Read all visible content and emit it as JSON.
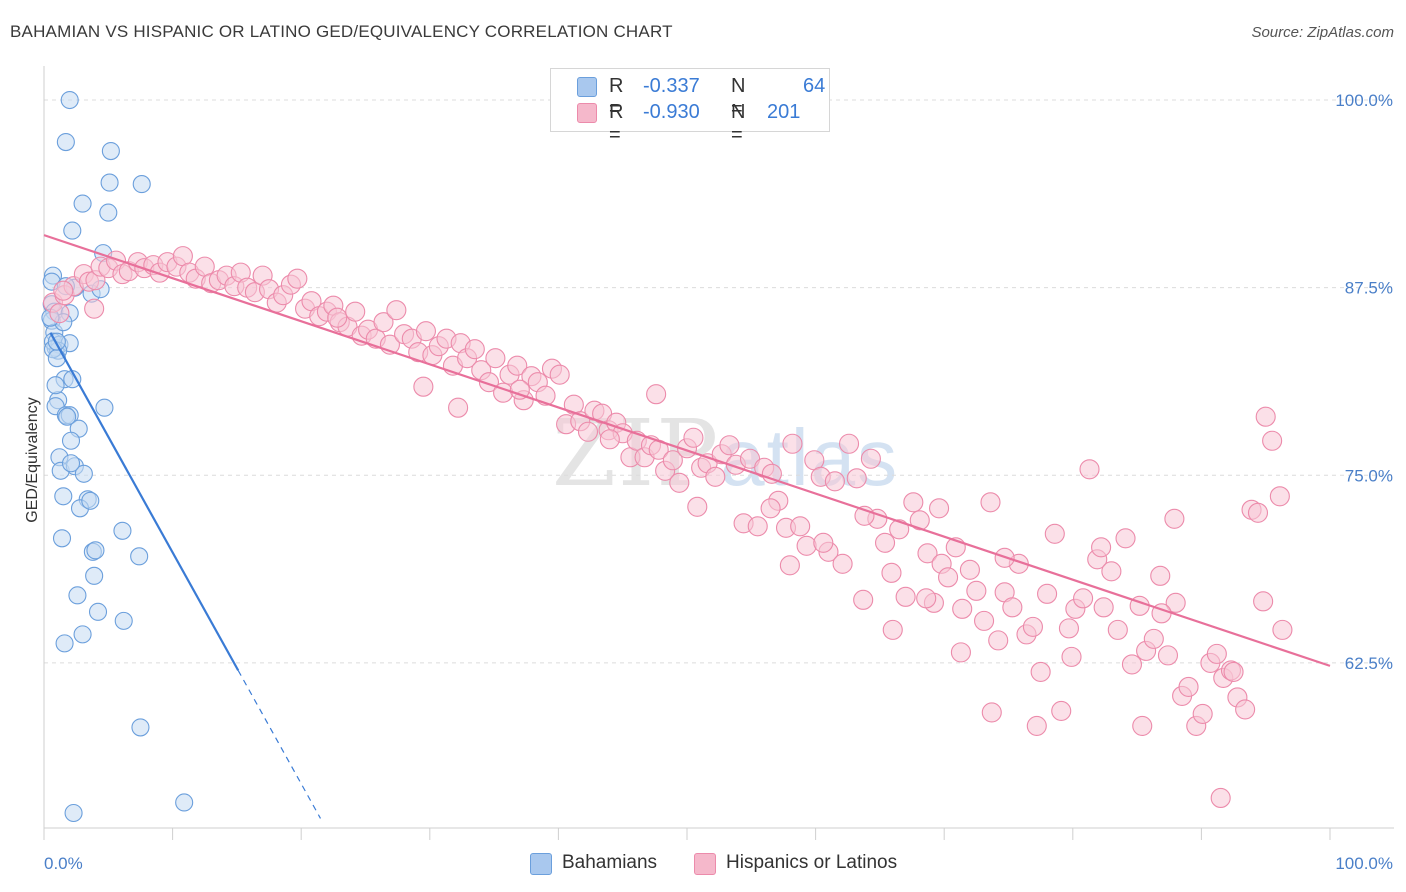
{
  "title": "BAHAMIAN VS HISPANIC OR LATINO GED/EQUIVALENCY CORRELATION CHART",
  "source": "Source: ZipAtlas.com",
  "watermark": {
    "zip": "ZIP",
    "atlas": "atlas"
  },
  "legend_top": {
    "rows": [
      {
        "r_label": "R =",
        "r_value": "-0.337",
        "n_label": "N =",
        "n_value": "64",
        "color": "#a9c8ee"
      },
      {
        "r_label": "R =",
        "r_value": "-0.930",
        "n_label": "N =",
        "n_value": "201",
        "color": "#f5b8cb"
      }
    ]
  },
  "legend_bottom": [
    {
      "label": "Bahamians",
      "color": "#a9c8ee"
    },
    {
      "label": "Hispanics or Latinos",
      "color": "#f5b8cb"
    }
  ],
  "chart_data": {
    "type": "scatter",
    "ylabel": "GED/Equivalency",
    "xlabel": "",
    "xlim": [
      0,
      100
    ],
    "ylim": [
      51.5,
      102
    ],
    "x_tick_labels": [
      "0.0%",
      "100.0%"
    ],
    "y_ticks": [
      62.5,
      75.0,
      87.5,
      100.0
    ],
    "y_tick_labels": [
      "62.5%",
      "75.0%",
      "87.5%",
      "100.0%"
    ],
    "grid": true,
    "series": [
      {
        "name": "Bahamians",
        "color": "#6b9fdc",
        "fill": "#c5daf3",
        "trend": {
          "x_start": 0.5,
          "y_start": 84.5,
          "x_solid_end": 15.1,
          "x_end": 21.5,
          "color": "#3a7bd5"
        },
        "points": [
          [
            2.0,
            100.0
          ],
          [
            1.7,
            97.2
          ],
          [
            5.2,
            96.6
          ],
          [
            5.1,
            94.5
          ],
          [
            7.6,
            94.4
          ],
          [
            3.0,
            93.1
          ],
          [
            5.0,
            92.5
          ],
          [
            2.2,
            91.3
          ],
          [
            4.6,
            89.8
          ],
          [
            0.7,
            88.3
          ],
          [
            0.6,
            87.9
          ],
          [
            2.4,
            87.5
          ],
          [
            3.7,
            87.1
          ],
          [
            4.4,
            87.4
          ],
          [
            1.7,
            87.6
          ],
          [
            0.6,
            86.4
          ],
          [
            0.8,
            85.9
          ],
          [
            0.6,
            85.3
          ],
          [
            2.0,
            85.8
          ],
          [
            0.8,
            84.5
          ],
          [
            1.5,
            85.2
          ],
          [
            0.9,
            83.5
          ],
          [
            0.7,
            83.9
          ],
          [
            1.2,
            83.7
          ],
          [
            2.0,
            83.8
          ],
          [
            1.1,
            83.3
          ],
          [
            0.7,
            83.4
          ],
          [
            1.0,
            82.8
          ],
          [
            1.6,
            81.4
          ],
          [
            2.2,
            81.4
          ],
          [
            1.1,
            80.0
          ],
          [
            0.9,
            79.6
          ],
          [
            4.7,
            79.5
          ],
          [
            1.7,
            79.0
          ],
          [
            2.0,
            79.0
          ],
          [
            2.7,
            78.1
          ],
          [
            2.1,
            77.3
          ],
          [
            1.2,
            76.2
          ],
          [
            1.3,
            75.3
          ],
          [
            2.4,
            75.6
          ],
          [
            3.1,
            75.1
          ],
          [
            1.5,
            73.6
          ],
          [
            3.4,
            73.4
          ],
          [
            2.8,
            72.8
          ],
          [
            6.1,
            71.3
          ],
          [
            1.4,
            70.8
          ],
          [
            3.8,
            69.9
          ],
          [
            7.4,
            69.6
          ],
          [
            3.9,
            68.3
          ],
          [
            2.6,
            67.0
          ],
          [
            4.2,
            65.9
          ],
          [
            6.2,
            65.3
          ],
          [
            3.0,
            64.4
          ],
          [
            1.6,
            63.8
          ],
          [
            7.5,
            58.2
          ],
          [
            2.3,
            52.5
          ],
          [
            10.9,
            53.2
          ],
          [
            0.5,
            85.5
          ],
          [
            1.0,
            83.9
          ],
          [
            3.6,
            73.3
          ],
          [
            4.0,
            70.0
          ],
          [
            2.1,
            75.8
          ],
          [
            1.8,
            78.9
          ],
          [
            0.9,
            81.0
          ]
        ]
      },
      {
        "name": "Hispanics or Latinos",
        "color": "#ec8bab",
        "fill": "#f8c6d6",
        "trend": {
          "x_start": 0.0,
          "y_start": 91.0,
          "x_end": 100.0,
          "y_end": 62.3,
          "color": "#e8709a"
        },
        "points": [
          [
            0.7,
            86.5
          ],
          [
            1.2,
            85.8
          ],
          [
            1.6,
            87.0
          ],
          [
            2.3,
            87.6
          ],
          [
            3.1,
            88.4
          ],
          [
            3.5,
            87.9
          ],
          [
            4.0,
            88.0
          ],
          [
            4.4,
            88.9
          ],
          [
            5.0,
            88.8
          ],
          [
            5.6,
            89.3
          ],
          [
            6.1,
            88.4
          ],
          [
            6.6,
            88.6
          ],
          [
            7.3,
            89.2
          ],
          [
            7.8,
            88.8
          ],
          [
            8.5,
            89.0
          ],
          [
            9.0,
            88.5
          ],
          [
            9.6,
            89.2
          ],
          [
            10.3,
            88.9
          ],
          [
            10.8,
            89.6
          ],
          [
            11.3,
            88.5
          ],
          [
            11.8,
            88.1
          ],
          [
            12.5,
            88.9
          ],
          [
            13.0,
            87.8
          ],
          [
            13.6,
            88.0
          ],
          [
            14.2,
            88.3
          ],
          [
            14.8,
            87.6
          ],
          [
            15.3,
            88.5
          ],
          [
            15.8,
            87.5
          ],
          [
            16.4,
            87.2
          ],
          [
            17.0,
            88.3
          ],
          [
            17.5,
            87.4
          ],
          [
            18.1,
            86.5
          ],
          [
            18.6,
            87.0
          ],
          [
            19.2,
            87.7
          ],
          [
            19.7,
            88.1
          ],
          [
            20.3,
            86.1
          ],
          [
            20.8,
            86.6
          ],
          [
            21.4,
            85.6
          ],
          [
            22.0,
            85.9
          ],
          [
            22.5,
            86.3
          ],
          [
            23.0,
            85.2
          ],
          [
            23.6,
            84.9
          ],
          [
            24.2,
            85.9
          ],
          [
            24.7,
            84.3
          ],
          [
            25.2,
            84.7
          ],
          [
            25.8,
            84.1
          ],
          [
            26.4,
            85.2
          ],
          [
            26.9,
            83.7
          ],
          [
            27.4,
            86.0
          ],
          [
            28.0,
            84.4
          ],
          [
            28.6,
            84.1
          ],
          [
            29.1,
            83.2
          ],
          [
            29.7,
            84.6
          ],
          [
            30.2,
            83.0
          ],
          [
            30.7,
            83.6
          ],
          [
            31.3,
            84.1
          ],
          [
            31.8,
            82.3
          ],
          [
            32.4,
            83.8
          ],
          [
            32.9,
            82.8
          ],
          [
            33.5,
            83.4
          ],
          [
            34.0,
            82.0
          ],
          [
            34.6,
            81.2
          ],
          [
            35.1,
            82.8
          ],
          [
            35.7,
            80.5
          ],
          [
            36.2,
            81.7
          ],
          [
            36.8,
            82.3
          ],
          [
            37.3,
            80.0
          ],
          [
            37.9,
            81.6
          ],
          [
            38.4,
            81.2
          ],
          [
            39.0,
            80.3
          ],
          [
            39.5,
            82.1
          ],
          [
            40.1,
            81.7
          ],
          [
            40.6,
            78.4
          ],
          [
            41.2,
            79.7
          ],
          [
            41.7,
            78.6
          ],
          [
            42.3,
            77.9
          ],
          [
            42.8,
            79.3
          ],
          [
            43.4,
            79.1
          ],
          [
            43.9,
            78.0
          ],
          [
            44.5,
            78.5
          ],
          [
            45.0,
            77.8
          ],
          [
            45.6,
            76.2
          ],
          [
            46.1,
            77.3
          ],
          [
            46.7,
            76.2
          ],
          [
            47.2,
            77.0
          ],
          [
            47.8,
            76.7
          ],
          [
            48.3,
            75.3
          ],
          [
            48.9,
            76.0
          ],
          [
            49.4,
            74.5
          ],
          [
            50.0,
            76.8
          ],
          [
            50.5,
            77.5
          ],
          [
            51.1,
            75.5
          ],
          [
            51.6,
            75.8
          ],
          [
            52.2,
            74.9
          ],
          [
            52.7,
            76.4
          ],
          [
            53.3,
            77.0
          ],
          [
            53.8,
            75.7
          ],
          [
            54.4,
            71.8
          ],
          [
            54.9,
            76.1
          ],
          [
            55.5,
            71.6
          ],
          [
            56.0,
            75.5
          ],
          [
            56.6,
            75.1
          ],
          [
            57.1,
            73.3
          ],
          [
            57.7,
            71.5
          ],
          [
            58.2,
            77.1
          ],
          [
            58.8,
            71.6
          ],
          [
            59.3,
            70.3
          ],
          [
            59.9,
            76.0
          ],
          [
            60.4,
            74.9
          ],
          [
            61.0,
            69.9
          ],
          [
            61.5,
            74.6
          ],
          [
            62.1,
            69.1
          ],
          [
            62.6,
            77.1
          ],
          [
            63.2,
            74.8
          ],
          [
            63.7,
            66.7
          ],
          [
            64.3,
            76.1
          ],
          [
            64.8,
            72.1
          ],
          [
            65.4,
            70.5
          ],
          [
            65.9,
            68.5
          ],
          [
            66.5,
            71.4
          ],
          [
            67.0,
            66.9
          ],
          [
            67.6,
            73.2
          ],
          [
            68.1,
            72.0
          ],
          [
            68.7,
            69.8
          ],
          [
            69.2,
            66.5
          ],
          [
            69.8,
            69.1
          ],
          [
            70.3,
            68.2
          ],
          [
            70.9,
            70.2
          ],
          [
            71.4,
            66.1
          ],
          [
            72.0,
            68.7
          ],
          [
            72.5,
            67.3
          ],
          [
            73.1,
            65.3
          ],
          [
            73.6,
            73.2
          ],
          [
            74.2,
            64.0
          ],
          [
            74.7,
            67.2
          ],
          [
            75.3,
            66.2
          ],
          [
            75.8,
            69.1
          ],
          [
            76.4,
            64.4
          ],
          [
            76.9,
            64.9
          ],
          [
            77.5,
            61.9
          ],
          [
            78.0,
            67.1
          ],
          [
            78.6,
            71.1
          ],
          [
            79.1,
            59.3
          ],
          [
            79.7,
            64.8
          ],
          [
            80.2,
            66.1
          ],
          [
            80.8,
            66.8
          ],
          [
            81.3,
            75.4
          ],
          [
            81.9,
            69.4
          ],
          [
            82.4,
            66.2
          ],
          [
            83.0,
            68.6
          ],
          [
            83.5,
            64.7
          ],
          [
            84.1,
            70.8
          ],
          [
            84.6,
            62.4
          ],
          [
            85.2,
            66.3
          ],
          [
            85.7,
            63.3
          ],
          [
            86.3,
            64.1
          ],
          [
            86.8,
            68.3
          ],
          [
            87.4,
            63.0
          ],
          [
            87.9,
            72.1
          ],
          [
            88.5,
            60.3
          ],
          [
            89.0,
            60.9
          ],
          [
            89.6,
            58.3
          ],
          [
            90.1,
            59.1
          ],
          [
            90.7,
            62.5
          ],
          [
            91.2,
            63.1
          ],
          [
            91.7,
            61.5
          ],
          [
            92.3,
            62.0
          ],
          [
            92.8,
            60.2
          ],
          [
            93.4,
            59.4
          ],
          [
            93.9,
            72.7
          ],
          [
            94.4,
            72.5
          ],
          [
            95.0,
            78.9
          ],
          [
            95.5,
            77.3
          ],
          [
            96.1,
            73.6
          ],
          [
            77.2,
            58.3
          ],
          [
            85.4,
            58.3
          ],
          [
            91.5,
            53.5
          ],
          [
            68.6,
            66.8
          ],
          [
            71.3,
            63.2
          ],
          [
            96.3,
            64.7
          ],
          [
            1.5,
            87.3
          ],
          [
            3.9,
            86.1
          ],
          [
            22.8,
            85.5
          ],
          [
            29.5,
            80.9
          ],
          [
            32.2,
            79.5
          ],
          [
            37.0,
            80.7
          ],
          [
            47.6,
            80.4
          ],
          [
            44.0,
            77.4
          ],
          [
            50.8,
            72.9
          ],
          [
            60.6,
            70.5
          ],
          [
            66.0,
            64.7
          ],
          [
            74.7,
            69.5
          ],
          [
            82.2,
            70.2
          ],
          [
            88.0,
            66.5
          ],
          [
            94.8,
            66.6
          ],
          [
            58.0,
            69.0
          ],
          [
            63.8,
            72.3
          ],
          [
            69.6,
            72.8
          ],
          [
            79.9,
            62.9
          ],
          [
            86.9,
            65.8
          ],
          [
            92.5,
            61.9
          ],
          [
            73.7,
            59.2
          ],
          [
            56.5,
            72.8
          ]
        ]
      }
    ]
  }
}
